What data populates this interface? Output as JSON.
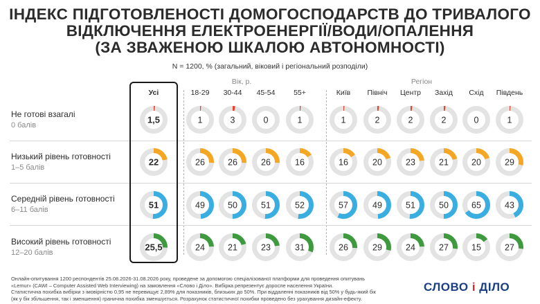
{
  "header": {
    "title_lines": [
      "ІНДЕКС ПІДГОТОВЛЕНОСТІ ДОМОГОСПОДАРСТВ ДО ТРИВАЛОГО",
      "ВІДКЛЮЧЕННЯ ЕЛЕКТРОЕНЕРГІЇ/ВОДИ/ОПАЛЕННЯ",
      "(ЗА ЗВАЖЕНОЮ ШКАЛОЮ АВТОНОМНОСТІ)"
    ],
    "subtitle": "N = 1200, % (загальний, віковий і регіональний розподіли)"
  },
  "groups": {
    "age": "Вік, р.",
    "region": "Регіон"
  },
  "columns": [
    "Усі",
    "18-29",
    "30-44",
    "45-54",
    "55+",
    "Київ",
    "Північ",
    "Центр",
    "Захід",
    "Схід",
    "Південь"
  ],
  "rows": [
    {
      "label": "Не готові взагалі",
      "sub": "0 балів"
    },
    {
      "label": "Низький рівень готовності",
      "sub": "1–5 балів"
    },
    {
      "label": "Середній рівень готовності",
      "sub": "6–11 балів"
    },
    {
      "label": "Високий рівень готовності",
      "sub": "12–20 балів"
    }
  ],
  "colors": {
    "row_colors": [
      "#e8412e",
      "#f5a623",
      "#3aaee0",
      "#3f9a3f"
    ],
    "track": "#e3e3e3",
    "logo_blue": "#1b3f82",
    "logo_red": "#d8262e"
  },
  "chart_data": {
    "type": "donut-grid",
    "unit": "%",
    "categories": [
      "Усі",
      "18-29",
      "30-44",
      "45-54",
      "55+",
      "Київ",
      "Північ",
      "Центр",
      "Захід",
      "Схід",
      "Південь"
    ],
    "series": [
      {
        "name": "Не готові взагалі",
        "values": [
          1.5,
          1,
          3,
          0,
          1,
          1,
          2,
          2,
          2,
          0,
          1
        ],
        "labels": [
          "1,5",
          "1",
          "3",
          "0",
          "1",
          "1",
          "2",
          "2",
          "2",
          "0",
          "1"
        ]
      },
      {
        "name": "Низький рівень готовності",
        "values": [
          22,
          26,
          26,
          26,
          16,
          16,
          20,
          23,
          21,
          20,
          29
        ],
        "labels": [
          "22",
          "26",
          "26",
          "26",
          "16",
          "16",
          "20",
          "23",
          "21",
          "20",
          "29"
        ]
      },
      {
        "name": "Середній рівень готовності",
        "values": [
          51,
          49,
          50,
          51,
          52,
          57,
          49,
          51,
          50,
          65,
          43
        ],
        "labels": [
          "51",
          "49",
          "50",
          "51",
          "52",
          "57",
          "49",
          "51",
          "50",
          "65",
          "43"
        ]
      },
      {
        "name": "Високий рівень готовності",
        "values": [
          25.5,
          24,
          21,
          23,
          31,
          26,
          29,
          24,
          27,
          15,
          27
        ],
        "labels": [
          "25,5",
          "24",
          "21",
          "23",
          "31",
          "26",
          "29",
          "24",
          "27",
          "15",
          "27"
        ]
      }
    ]
  },
  "footer": {
    "lines": [
      "Онлайн-опитування 1200 респондентів 25.08.2026-31.08.2026 року, проведене за допомогою спеціалізованої платформи для проведення опитувань",
      "«Lemur» (CAWI – Computer Assisted Web Interviewing) на замовлення «Слово і Діло». Вибірка репрезентує доросле населення України.",
      "Статистична похибка вибірки з імовірністю 0,95 не перевищує 2,89% для показників, близьких до 50%. При віддаленні показників від 50% у будь-який бік",
      "(як у бік збільшення, так і зменшення) гранична похибка зменшується. Розрахунок статистичної похибки проведено без урахування дизайн-ефекту."
    ]
  },
  "logo": {
    "left": "СЛОВО",
    "mid": "і",
    "right": "ДІЛО"
  }
}
